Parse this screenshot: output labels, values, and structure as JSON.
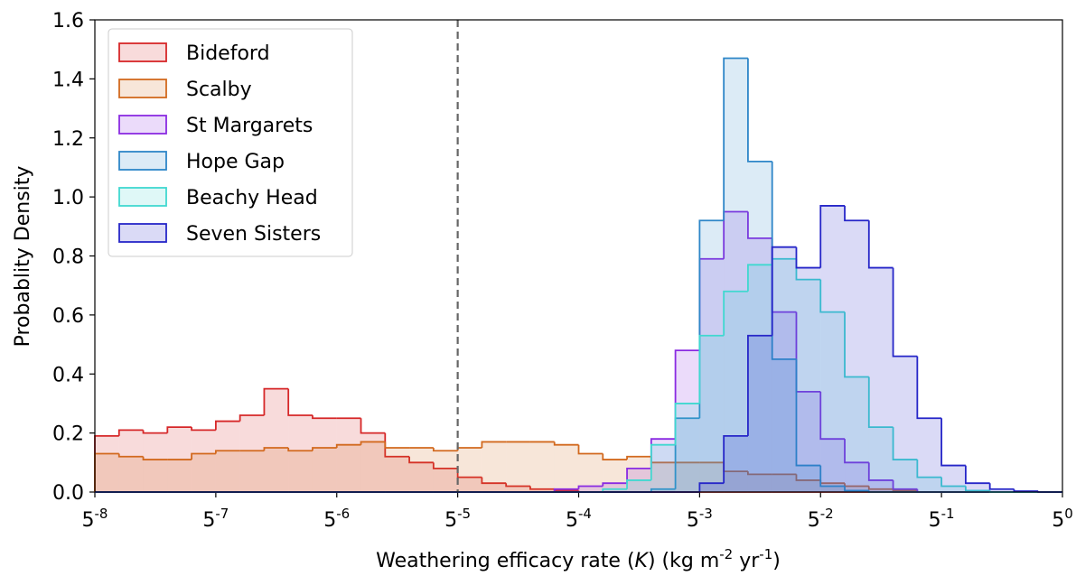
{
  "chart_data": {
    "type": "histogram",
    "xlabel": [
      "Weathering efficacy rate (",
      "K",
      ") (kg m",
      "-2",
      " yr",
      "-1",
      ")"
    ],
    "ylabel": "Probablity Density",
    "xscale": "log",
    "xlim": [
      2.56e-06,
      1
    ],
    "xticks": [
      {
        "value": 2.56e-06,
        "label": "5",
        "sup": "-8"
      },
      {
        "value": 1.28e-05,
        "label": "5",
        "sup": "-7"
      },
      {
        "value": 6.4e-05,
        "label": "5",
        "sup": "-6"
      },
      {
        "value": 0.00032,
        "label": "5",
        "sup": "-5"
      },
      {
        "value": 0.0016,
        "label": "5",
        "sup": "-4"
      },
      {
        "value": 0.008,
        "label": "5",
        "sup": "-3"
      },
      {
        "value": 0.04,
        "label": "5",
        "sup": "-2"
      },
      {
        "value": 0.2,
        "label": "5",
        "sup": "-1"
      },
      {
        "value": 1,
        "label": "5",
        "sup": "0"
      }
    ],
    "ylim": [
      0,
      1.6
    ],
    "yticks": [
      {
        "value": 0,
        "label": "0.0"
      },
      0.2,
      0.4,
      0.6,
      0.8,
      {
        "value": 1,
        "label": "1.0"
      },
      1.2,
      1.4,
      1.6
    ],
    "reference_line": {
      "x": 0.00032,
      "color": "#666666",
      "style": "dashed"
    },
    "legend": "upper left",
    "bins": [
      2.56e-06,
      3.532e-06,
      4.873e-06,
      6.724e-06,
      9.277e-06,
      1.28e-05,
      1.766e-05,
      2.437e-05,
      3.362e-05,
      4.639e-05,
      6.4e-05,
      8.83e-05,
      0.00012183,
      0.0001681,
      0.00023193,
      0.00032,
      0.0004415,
      0.0006092,
      0.0008405,
      0.0011596,
      0.0016,
      0.0022076,
      0.0030458,
      0.0042024,
      0.0057982,
      0.008,
      0.011038,
      0.015229,
      0.021012,
      0.028991,
      0.04,
      0.055189,
      0.076146,
      0.10506,
      0.14496,
      0.2,
      0.27595,
      0.38073,
      0.52531,
      0.72478,
      1
    ],
    "series": [
      {
        "name": "Bideford",
        "color": "#d62728",
        "values": [
          0.19,
          0.21,
          0.2,
          0.22,
          0.21,
          0.24,
          0.26,
          0.35,
          0.26,
          0.25,
          0.25,
          0.2,
          0.12,
          0.1,
          0.08,
          0.05,
          0.03,
          0.02,
          0.01,
          0.005,
          0,
          0,
          0,
          0,
          0,
          0,
          0,
          0,
          0,
          0,
          0,
          0,
          0,
          0,
          0,
          0,
          0,
          0,
          0,
          0
        ]
      },
      {
        "name": "Scalby",
        "color": "#d2691e",
        "values": [
          0.13,
          0.12,
          0.11,
          0.11,
          0.13,
          0.14,
          0.14,
          0.15,
          0.14,
          0.15,
          0.16,
          0.17,
          0.15,
          0.15,
          0.14,
          0.15,
          0.17,
          0.17,
          0.17,
          0.16,
          0.13,
          0.11,
          0.12,
          0.1,
          0.1,
          0.1,
          0.07,
          0.06,
          0.06,
          0.04,
          0.03,
          0.02,
          0.01,
          0.005,
          0,
          0,
          0,
          0,
          0,
          0
        ]
      },
      {
        "name": "St Margarets",
        "color": "#8a2be2",
        "values": [
          0,
          0,
          0,
          0,
          0,
          0,
          0,
          0,
          0,
          0,
          0,
          0,
          0,
          0,
          0,
          0,
          0,
          0,
          0,
          0.01,
          0.02,
          0.03,
          0.08,
          0.18,
          0.48,
          0.79,
          0.95,
          0.86,
          0.61,
          0.34,
          0.18,
          0.1,
          0.04,
          0.01,
          0,
          0,
          0,
          0,
          0,
          0
        ]
      },
      {
        "name": "Hope Gap",
        "color": "#2e86c8",
        "values": [
          0,
          0,
          0,
          0,
          0,
          0,
          0,
          0,
          0,
          0,
          0,
          0,
          0,
          0,
          0,
          0,
          0,
          0,
          0,
          0,
          0,
          0,
          0,
          0.01,
          0.25,
          0.92,
          1.47,
          1.12,
          0.45,
          0.09,
          0.02,
          0.005,
          0,
          0,
          0,
          0,
          0,
          0,
          0,
          0
        ]
      },
      {
        "name": "Beachy Head",
        "color": "#40d8d0",
        "values": [
          0,
          0,
          0,
          0,
          0,
          0,
          0,
          0,
          0,
          0,
          0,
          0,
          0,
          0,
          0,
          0,
          0,
          0,
          0,
          0,
          0,
          0.01,
          0.04,
          0.16,
          0.3,
          0.53,
          0.68,
          0.77,
          0.79,
          0.72,
          0.61,
          0.39,
          0.22,
          0.11,
          0.05,
          0.02,
          0.005,
          0,
          0,
          0
        ]
      },
      {
        "name": "Seven Sisters",
        "color": "#2626c8",
        "values": [
          0,
          0,
          0,
          0,
          0,
          0,
          0,
          0,
          0,
          0,
          0,
          0,
          0,
          0,
          0,
          0,
          0,
          0,
          0,
          0,
          0,
          0,
          0,
          0,
          0,
          0.03,
          0.19,
          0.53,
          0.83,
          0.76,
          0.97,
          0.92,
          0.76,
          0.46,
          0.25,
          0.09,
          0.03,
          0.01,
          0.003,
          0
        ]
      }
    ]
  }
}
